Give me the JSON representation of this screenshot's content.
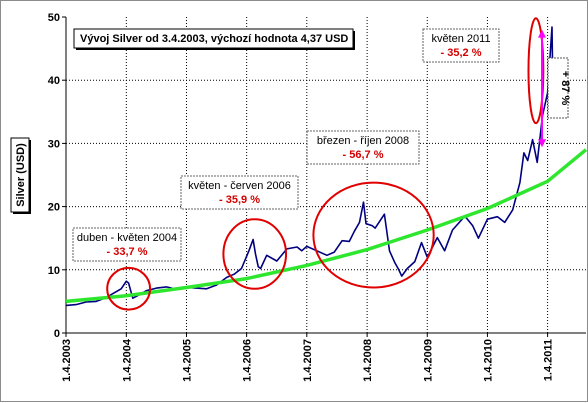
{
  "chart_data": {
    "type": "line",
    "title": "Vývoj Silver od 3.4.2003, výchozí hodnota 4,37 USD",
    "ylabel": "Silver (USD)",
    "ylim": [
      0,
      50
    ],
    "yticks": [
      0,
      10,
      20,
      30,
      40,
      50
    ],
    "xlim": [
      "2003-04-01",
      "2011-11-20"
    ],
    "xticks": [
      "1.4.2003",
      "1.4.2004",
      "1.4.2005",
      "1.4.2006",
      "1.4.2007",
      "1.4.2008",
      "1.4.2009",
      "1.4.2010",
      "1.4.2011"
    ],
    "grid": true,
    "grid_style": "dotted horizontal and vertical",
    "series": [
      {
        "color": "#000080",
        "points": [
          [
            "2003-04-03",
            4.37
          ],
          [
            "2003-06-01",
            4.5
          ],
          [
            "2003-08-01",
            4.9
          ],
          [
            "2003-10-01",
            5.0
          ],
          [
            "2003-12-01",
            5.6
          ],
          [
            "2004-01-15",
            6.3
          ],
          [
            "2004-03-01",
            7.0
          ],
          [
            "2004-04-01",
            8.2
          ],
          [
            "2004-04-15",
            7.9
          ],
          [
            "2004-05-10",
            5.5
          ],
          [
            "2004-06-15",
            6.0
          ],
          [
            "2004-08-01",
            6.7
          ],
          [
            "2004-10-01",
            7.1
          ],
          [
            "2004-12-01",
            7.3
          ],
          [
            "2005-02-01",
            6.9
          ],
          [
            "2005-04-01",
            7.2
          ],
          [
            "2005-06-01",
            7.1
          ],
          [
            "2005-08-01",
            7.0
          ],
          [
            "2005-10-01",
            7.6
          ],
          [
            "2005-12-01",
            8.8
          ],
          [
            "2006-01-15",
            9.3
          ],
          [
            "2006-03-01",
            10.2
          ],
          [
            "2006-04-15",
            13.0
          ],
          [
            "2006-05-10",
            14.8
          ],
          [
            "2006-05-25",
            12.5
          ],
          [
            "2006-06-10",
            10.5
          ],
          [
            "2006-06-25",
            10.2
          ],
          [
            "2006-08-01",
            12.3
          ],
          [
            "2006-10-01",
            11.4
          ],
          [
            "2006-12-01",
            13.3
          ],
          [
            "2007-02-01",
            13.6
          ],
          [
            "2007-03-01",
            13.0
          ],
          [
            "2007-04-01",
            13.7
          ],
          [
            "2007-06-01",
            13.0
          ],
          [
            "2007-08-01",
            12.3
          ],
          [
            "2007-09-15",
            12.8
          ],
          [
            "2007-11-01",
            14.6
          ],
          [
            "2007-12-15",
            14.5
          ],
          [
            "2008-01-15",
            16.1
          ],
          [
            "2008-02-15",
            17.5
          ],
          [
            "2008-03-10",
            20.7
          ],
          [
            "2008-03-25",
            17.3
          ],
          [
            "2008-05-01",
            17.0
          ],
          [
            "2008-05-20",
            16.6
          ],
          [
            "2008-07-15",
            18.8
          ],
          [
            "2008-08-15",
            13.0
          ],
          [
            "2008-09-15",
            11.2
          ],
          [
            "2008-10-10",
            10.0
          ],
          [
            "2008-10-28",
            9.0
          ],
          [
            "2008-12-01",
            10.2
          ],
          [
            "2009-01-15",
            11.3
          ],
          [
            "2009-02-25",
            14.3
          ],
          [
            "2009-04-01",
            12.0
          ],
          [
            "2009-06-01",
            15.1
          ],
          [
            "2009-07-15",
            13.0
          ],
          [
            "2009-09-01",
            16.3
          ],
          [
            "2009-11-15",
            18.5
          ],
          [
            "2010-01-01",
            17.0
          ],
          [
            "2010-02-05",
            15.0
          ],
          [
            "2010-04-01",
            18.0
          ],
          [
            "2010-06-01",
            18.4
          ],
          [
            "2010-07-15",
            17.5
          ],
          [
            "2010-09-01",
            19.5
          ],
          [
            "2010-10-15",
            23.8
          ],
          [
            "2010-11-08",
            28.5
          ],
          [
            "2010-12-01",
            27.3
          ],
          [
            "2010-12-31",
            30.6
          ],
          [
            "2011-01-28",
            27.0
          ],
          [
            "2011-03-01",
            34.4
          ],
          [
            "2011-04-01",
            38.0
          ],
          [
            "2011-04-28",
            48.4
          ],
          [
            "2011-05-05",
            35.0
          ],
          [
            "2011-05-12",
            34.0
          ]
        ]
      },
      {
        "color": "#2ee62e",
        "points": [
          [
            "2003-04-01",
            5.0
          ],
          [
            "2004-04-01",
            5.9
          ],
          [
            "2005-04-01",
            7.2
          ],
          [
            "2006-04-01",
            8.6
          ],
          [
            "2007-04-01",
            10.7
          ],
          [
            "2008-04-01",
            13.2
          ],
          [
            "2009-04-01",
            16.3
          ],
          [
            "2010-04-01",
            19.7
          ],
          [
            "2011-04-01",
            24.0
          ],
          [
            "2011-11-20",
            29.0
          ]
        ]
      }
    ],
    "annotations": [
      {
        "label": "duben - květen 2004",
        "change": "- 33,7 %",
        "center": [
          "2004-04-15",
          7.0
        ],
        "rx_days": 130,
        "ry_units": 3.3
      },
      {
        "label": "květen - červen 2006",
        "change": "- 35,9 %",
        "center": [
          "2006-05-20",
          12.5
        ],
        "rx_days": 190,
        "ry_units": 5.5
      },
      {
        "label": "březen - říjen 2008",
        "change": "- 56,7 %",
        "center": [
          "2008-05-10",
          15.5
        ],
        "rx_days": 365,
        "ry_units": 8.3
      },
      {
        "label": "květen 2011",
        "change": "- 35,2 %",
        "center": [
          "2011-01-20",
          41.5
        ],
        "rx_days": 45,
        "ry_units": 8.3
      }
    ],
    "range_marker": {
      "label": "+ 87 %",
      "from": 29.4,
      "to": 48.0,
      "color": "#ff00ff"
    }
  }
}
